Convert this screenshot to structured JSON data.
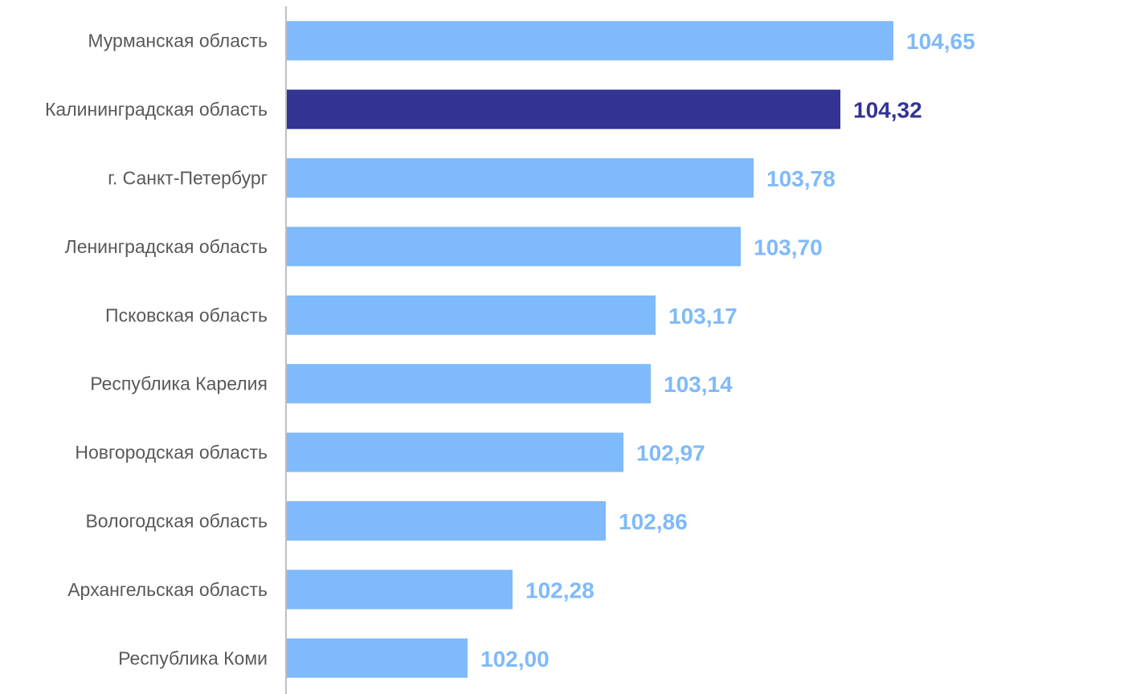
{
  "chart_data": {
    "type": "bar",
    "orientation": "horizontal",
    "categories": [
      "Мурманская область",
      "Калининградская область",
      "г. Санкт-Петербург",
      "Ленинградская область",
      "Псковская область",
      "Республика Карелия",
      "Новгородская область",
      "Вологодская область",
      "Архангельская область",
      "Республика Коми"
    ],
    "values": [
      104.65,
      104.32,
      103.78,
      103.7,
      103.17,
      103.14,
      102.97,
      102.86,
      102.28,
      102.0
    ],
    "value_labels": [
      "104,65",
      "104,32",
      "103,78",
      "103,70",
      "103,17",
      "103,14",
      "102,97",
      "102,86",
      "102,28",
      "102,00"
    ],
    "highlight_index": 1,
    "xlim": [
      100.87,
      105.5
    ],
    "title": "",
    "xlabel": "",
    "ylabel": "",
    "grid": false,
    "legend": "none",
    "colors": {
      "bar": "#7FBAFA",
      "highlight": "#333394",
      "axis": "#BFBFBF",
      "category_text": "#595959"
    }
  }
}
